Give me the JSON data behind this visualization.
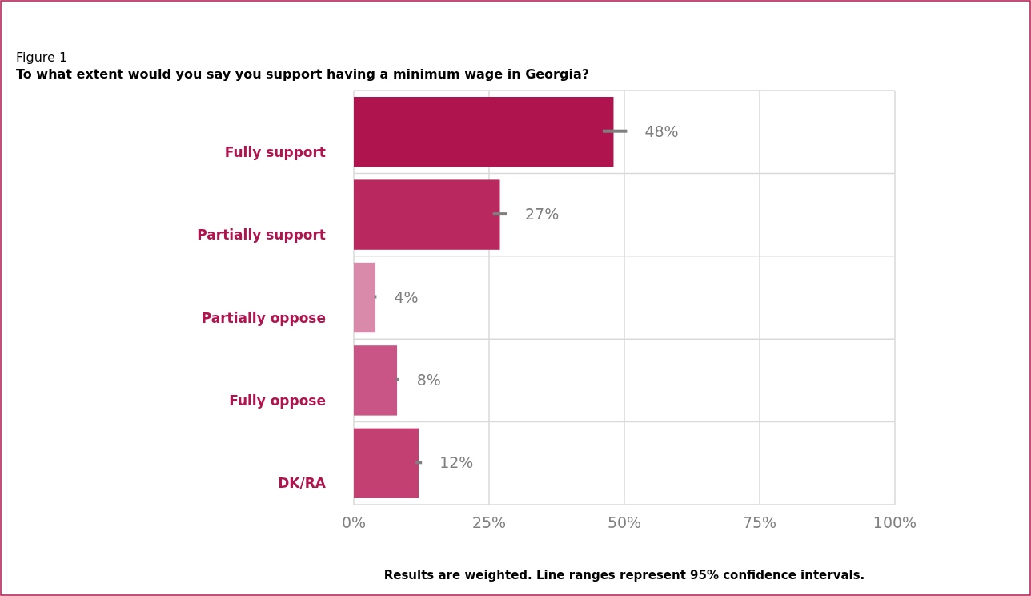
{
  "chart_data": {
    "type": "bar",
    "orientation": "horizontal",
    "title": "Figure 1",
    "subtitle": "To what extent would you say you support having a minimum wage in Georgia?",
    "categories": [
      "Fully support",
      "Partially  support",
      "Partially  oppose",
      "Fully oppose",
      "DK/RA"
    ],
    "values": [
      48,
      27,
      4,
      8,
      12
    ],
    "colors": [
      "#b0144f",
      "#b92960",
      "#d98aab",
      "#c95587",
      "#c24172"
    ],
    "errors": [
      [
        46,
        50.5
      ],
      [
        25.7,
        28.4
      ],
      [
        3.8,
        4.2
      ],
      [
        7.8,
        8.4
      ],
      [
        11.4,
        12.6
      ]
    ],
    "value_labels": [
      "48%",
      "27%",
      "4%",
      "8%",
      "12%"
    ],
    "xlim": [
      0,
      100
    ],
    "xticks": [
      {
        "value": 0,
        "label": "0%"
      },
      {
        "value": 25,
        "label": "25%"
      },
      {
        "value": 50,
        "label": "50%"
      },
      {
        "value": 75,
        "label": "75%"
      },
      {
        "value": 100,
        "label": "100%"
      }
    ],
    "grid": true,
    "annotations": [
      "Results are weighted. Line ranges represent 95% confidence intervals."
    ]
  }
}
